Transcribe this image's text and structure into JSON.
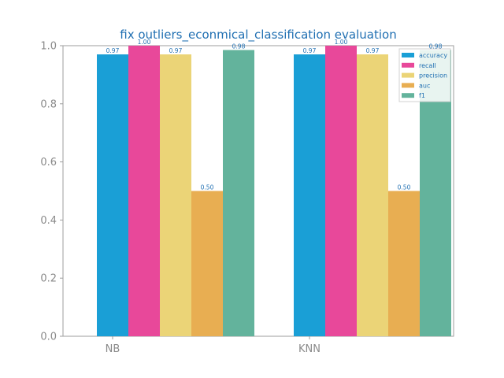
{
  "chart_data": {
    "type": "bar",
    "title": "fix outliers_econmical_classification evaluation",
    "xlabel": "",
    "ylabel": "",
    "categories": [
      "NB",
      "KNN"
    ],
    "series": [
      {
        "name": "accuracy",
        "color": "#1a9fd6",
        "values": [
          0.97,
          0.97
        ],
        "labels": [
          "0.97",
          "0.97"
        ]
      },
      {
        "name": "recall",
        "color": "#e8489a",
        "values": [
          1.0,
          1.0
        ],
        "labels": [
          "1.00",
          "1.00"
        ]
      },
      {
        "name": "precision",
        "color": "#ebd477",
        "values": [
          0.97,
          0.97
        ],
        "labels": [
          "0.97",
          "0.97"
        ]
      },
      {
        "name": "auc",
        "color": "#e8ae52",
        "values": [
          0.5,
          0.5
        ],
        "labels": [
          "0.50",
          "0.50"
        ]
      },
      {
        "name": "f1",
        "color": "#63b39c",
        "values": [
          0.985,
          0.985
        ],
        "labels": [
          "0.98",
          "0.98"
        ]
      }
    ],
    "ylim": [
      0,
      1
    ],
    "yticks": [
      "0.0",
      "0.2",
      "0.4",
      "0.6",
      "0.8",
      "1.0"
    ],
    "grid": false,
    "legend_position": "top-right"
  }
}
